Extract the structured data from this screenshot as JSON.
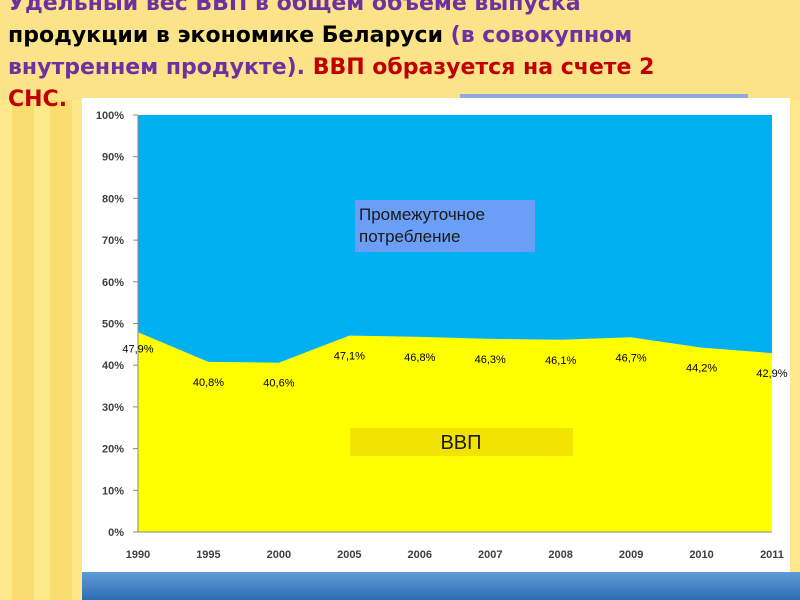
{
  "title_lines": [
    [
      {
        "text": "Удельный вес ВВП в общем объеме выпуска",
        "color": "#7030a0"
      }
    ],
    [
      {
        "text": "продукции в экономике Беларуси ",
        "color": "#000000"
      },
      {
        "text": "(в совокупном",
        "color": "#7030a0"
      }
    ],
    [
      {
        "text": "внутреннем продукте). ",
        "color": "#7030a0"
      },
      {
        "text": "ВВП образуется на счете 2",
        "color": "#c00000"
      }
    ],
    [
      {
        "text": "СНС.",
        "color": "#c00000"
      }
    ]
  ],
  "chart_data": {
    "type": "stacked_area",
    "categories": [
      "1990",
      "1995",
      "2000",
      "2005",
      "2006",
      "2007",
      "2008",
      "2009",
      "2010",
      "2011"
    ],
    "series": [
      {
        "name": "ВВП",
        "color": "#ffff00",
        "box_color": "#f2e400",
        "values": [
          47.9,
          40.8,
          40.6,
          47.1,
          46.8,
          46.3,
          46.1,
          46.7,
          44.2,
          42.9
        ],
        "value_labels": [
          "47,9%",
          "40,8%",
          "40,6%",
          "47,1%",
          "46,8%",
          "46,3%",
          "46,1%",
          "46,7%",
          "44,2%",
          "42,9%"
        ]
      },
      {
        "name": "Промежуточное потребление",
        "color": "#00b0f0",
        "box_color": "#6b9ff5",
        "values": [
          52.1,
          59.2,
          59.4,
          52.9,
          53.2,
          53.7,
          53.9,
          53.3,
          55.8,
          57.1
        ]
      }
    ],
    "ylim": [
      0,
      100
    ],
    "yticks": [
      {
        "value": 0,
        "label": "0%"
      },
      {
        "value": 10,
        "label": "10%"
      },
      {
        "value": 20,
        "label": "20%"
      },
      {
        "value": 30,
        "label": "30%"
      },
      {
        "value": 40,
        "label": "40%"
      },
      {
        "value": 50,
        "label": "50%"
      },
      {
        "value": 60,
        "label": "60%"
      },
      {
        "value": 70,
        "label": "70%"
      },
      {
        "value": 80,
        "label": "80%"
      },
      {
        "value": 90,
        "label": "90%"
      },
      {
        "value": 100,
        "label": "100%"
      }
    ]
  }
}
